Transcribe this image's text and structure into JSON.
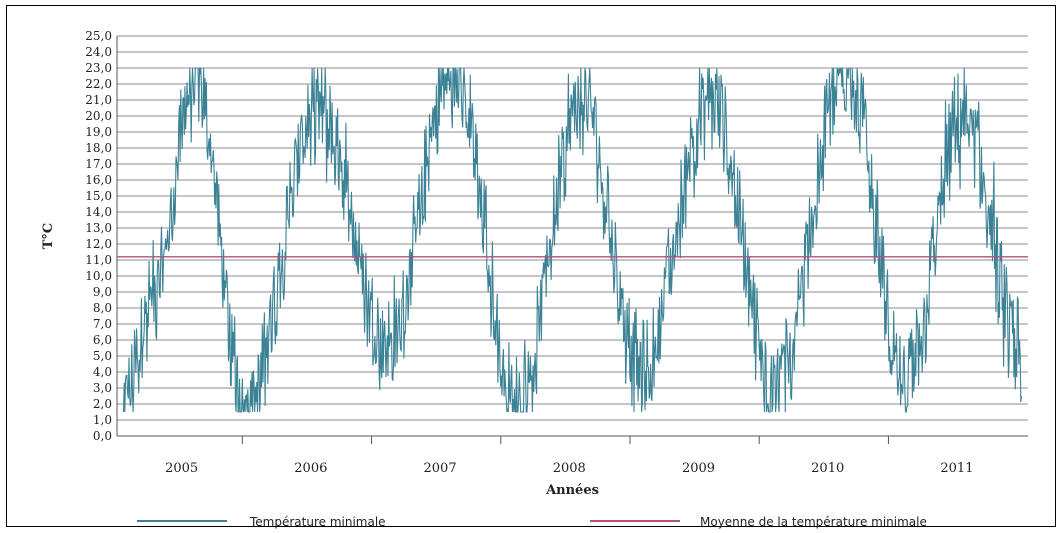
{
  "chart_data": {
    "type": "line",
    "xlabel": "Années",
    "ylabel": "T°C",
    "ylim": [
      0,
      25
    ],
    "ytick_step": 1,
    "grid": true,
    "legend_position": "bottom",
    "year_labels": [
      "2005",
      "2006",
      "2007",
      "2008",
      "2009",
      "2010",
      "2011"
    ],
    "series": [
      {
        "name": "Température minimale",
        "color": "#3b8296",
        "peaks": [
          {
            "x": 2005.0,
            "y": 2.0
          },
          {
            "x": 2005.25,
            "y": 9.0
          },
          {
            "x": 2005.55,
            "y": 22.5
          },
          {
            "x": 2005.95,
            "y": 1.5
          },
          {
            "x": 2006.5,
            "y": 20.5
          },
          {
            "x": 2007.05,
            "y": 5.5
          },
          {
            "x": 2007.55,
            "y": 22.8
          },
          {
            "x": 2008.05,
            "y": 2.0
          },
          {
            "x": 2008.55,
            "y": 21.0
          },
          {
            "x": 2009.0,
            "y": 4.0
          },
          {
            "x": 2009.55,
            "y": 21.0
          },
          {
            "x": 2010.05,
            "y": 3.0
          },
          {
            "x": 2010.6,
            "y": 23.0
          },
          {
            "x": 2011.05,
            "y": 3.0
          },
          {
            "x": 2011.5,
            "y": 20.0
          },
          {
            "x": 2011.95,
            "y": 5.0
          }
        ]
      },
      {
        "name": "Moyenne de la température minimale",
        "color": "#b0507a",
        "value": 11.2
      }
    ]
  }
}
